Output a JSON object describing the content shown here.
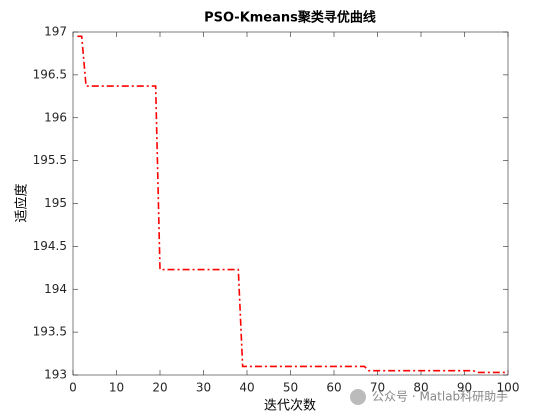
{
  "chart_data": {
    "type": "line",
    "title": "PSO-Kmeans聚类寻优曲线",
    "x_label": "迭代次数",
    "y_label": "适应度",
    "x": [
      1,
      2,
      3,
      19,
      20,
      38,
      39,
      67,
      68,
      92,
      93,
      100
    ],
    "series": [
      {
        "color": "#ff0000",
        "values": [
          196.95,
          196.95,
          196.37,
          196.37,
          194.23,
          194.23,
          193.1,
          193.1,
          193.05,
          193.05,
          193.03,
          193.03
        ]
      }
    ],
    "xlim": [
      0,
      100
    ],
    "xticks": [
      0,
      10,
      20,
      30,
      40,
      50,
      60,
      70,
      80,
      90,
      100
    ],
    "ylim": [
      193,
      197
    ],
    "yticks": [
      193,
      193.5,
      194,
      194.5,
      195,
      195.5,
      196,
      196.5,
      197
    ],
    "grid": false
  },
  "watermark": "公众号 · Matlab科研助手"
}
